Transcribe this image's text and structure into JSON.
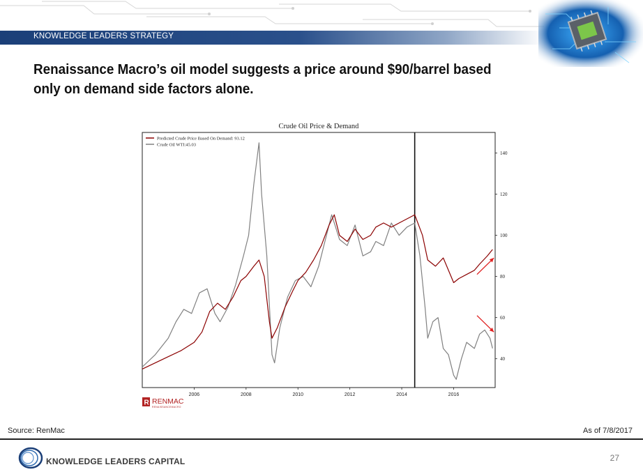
{
  "header": {
    "banner_label": "KNOWLEDGE LEADERS STRATEGY",
    "headline": "Renaissance Macro’s oil model suggests a price around $90/barrel based only on demand side factors alone."
  },
  "footer": {
    "source": "Source: RenMac",
    "as_of": "As of 7/8/2017",
    "brand": "KNOWLEDGE LEADERS CAPITAL",
    "page_number": "27"
  },
  "colors": {
    "banner": "#1b3f78",
    "predicted": "#8b0000",
    "wti": "#808080",
    "arrow": "#e02020",
    "renmac": "#b22222"
  },
  "chart_data": {
    "type": "line",
    "title": "Crude Oil Price & Demand",
    "x_tick_labels": [
      "2006",
      "2008",
      "2010",
      "2012",
      "2014",
      "2016"
    ],
    "y_tick_labels": [
      "40",
      "60",
      "80",
      "100",
      "120",
      "140"
    ],
    "xlim": [
      2004.0,
      2017.6
    ],
    "ylim": [
      26,
      150
    ],
    "y_axis_side": "right",
    "legend_position": "top-left",
    "vertical_marker_x": 2014.5,
    "watermark": "RENMAC",
    "watermark_sub": "RENAISSANCEMACRO",
    "series": [
      {
        "name": "Predicted Crude Price Based On Demand: 93.12",
        "color": "#8b0000",
        "x": [
          2004.0,
          2004.5,
          2005.0,
          2005.5,
          2006.0,
          2006.3,
          2006.6,
          2006.9,
          2007.2,
          2007.5,
          2007.8,
          2008.0,
          2008.3,
          2008.5,
          2008.7,
          2008.9,
          2009.0,
          2009.2,
          2009.5,
          2009.8,
          2010.0,
          2010.3,
          2010.6,
          2010.9,
          2011.2,
          2011.4,
          2011.6,
          2011.9,
          2012.2,
          2012.5,
          2012.8,
          2013.0,
          2013.3,
          2013.6,
          2013.9,
          2014.2,
          2014.5,
          2014.8,
          2015.0,
          2015.3,
          2015.6,
          2015.9,
          2016.0,
          2016.2,
          2016.5,
          2016.8,
          2017.0,
          2017.3,
          2017.5
        ],
        "y": [
          35,
          38,
          41,
          44,
          48,
          53,
          63,
          67,
          64,
          70,
          78,
          80,
          85,
          88,
          80,
          58,
          50,
          55,
          65,
          73,
          78,
          82,
          88,
          95,
          105,
          110,
          100,
          97,
          103,
          98,
          100,
          104,
          106,
          104,
          106,
          108,
          110,
          100,
          88,
          85,
          89,
          80,
          77,
          79,
          81,
          83,
          86,
          90,
          93.12
        ]
      },
      {
        "name": "Crude Oil WTI:45.03",
        "color": "#808080",
        "x": [
          2004.0,
          2004.5,
          2005.0,
          2005.3,
          2005.6,
          2005.9,
          2006.2,
          2006.5,
          2006.8,
          2007.0,
          2007.3,
          2007.6,
          2007.9,
          2008.1,
          2008.3,
          2008.5,
          2008.6,
          2008.8,
          2009.0,
          2009.1,
          2009.3,
          2009.6,
          2009.9,
          2010.2,
          2010.5,
          2010.8,
          2011.0,
          2011.3,
          2011.6,
          2011.9,
          2012.2,
          2012.5,
          2012.8,
          2013.0,
          2013.3,
          2013.6,
          2013.9,
          2014.2,
          2014.5,
          2014.7,
          2014.9,
          2015.0,
          2015.2,
          2015.4,
          2015.6,
          2015.8,
          2016.0,
          2016.1,
          2016.3,
          2016.5,
          2016.8,
          2017.0,
          2017.2,
          2017.4,
          2017.5
        ],
        "y": [
          36,
          42,
          50,
          58,
          64,
          62,
          72,
          74,
          62,
          58,
          65,
          76,
          90,
          100,
          125,
          145,
          120,
          90,
          42,
          38,
          55,
          70,
          78,
          80,
          75,
          85,
          95,
          110,
          98,
          95,
          105,
          90,
          92,
          97,
          95,
          106,
          100,
          104,
          106,
          90,
          65,
          50,
          58,
          60,
          45,
          42,
          32,
          30,
          40,
          48,
          45,
          52,
          54,
          50,
          45.03
        ]
      }
    ],
    "annotations": [
      {
        "type": "arrow",
        "color": "#e02020",
        "from": [
          2016.9,
          81
        ],
        "to": [
          2017.55,
          89
        ]
      },
      {
        "type": "arrow",
        "color": "#e02020",
        "from": [
          2016.9,
          61
        ],
        "to": [
          2017.55,
          53
        ]
      }
    ]
  }
}
